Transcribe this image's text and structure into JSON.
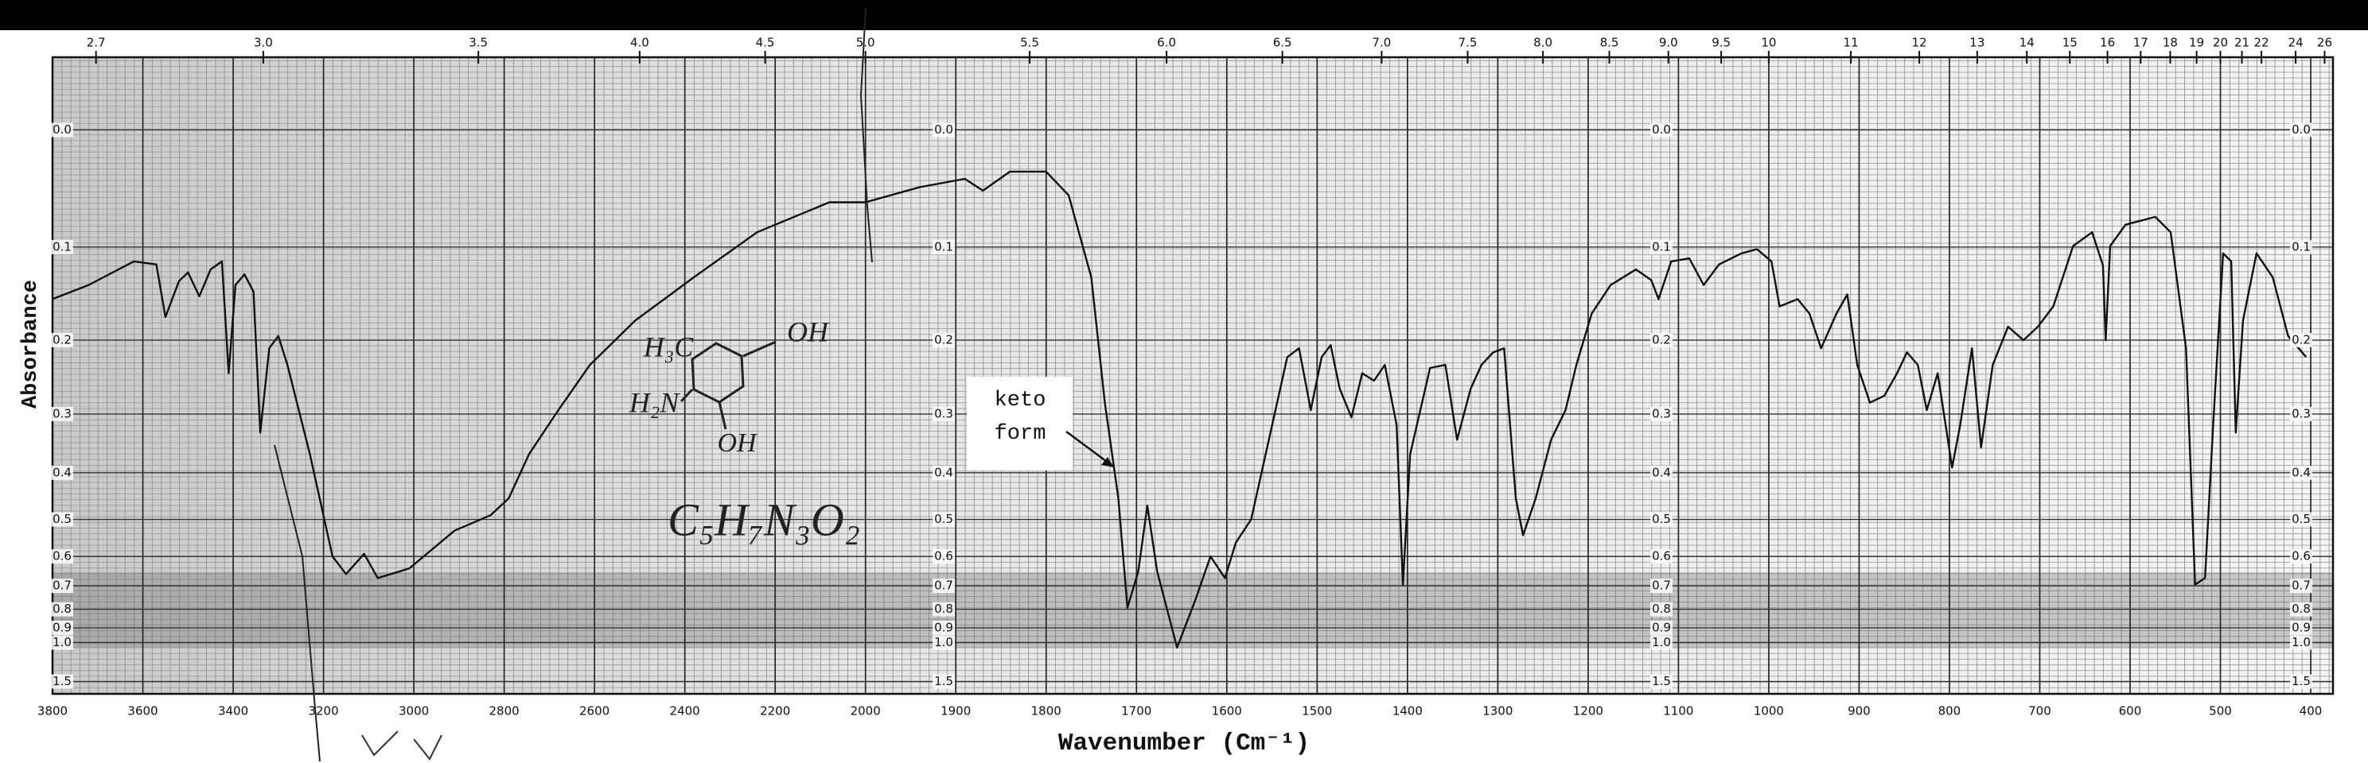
{
  "chart_data": {
    "type": "line",
    "ylabel": "Absorbance",
    "xlabel": "Wavenumber (Cm⁻¹)",
    "x": [
      3800,
      3720,
      3620,
      3570,
      3550,
      3520,
      3500,
      3475,
      3450,
      3425,
      3410,
      3395,
      3375,
      3355,
      3340,
      3320,
      3300,
      3280,
      3230,
      3180,
      3150,
      3110,
      3080,
      3010,
      2910,
      2830,
      2790,
      2745,
      2680,
      2610,
      2510,
      2380,
      2240,
      2080,
      2000,
      1940,
      1890,
      1870,
      1840,
      1800,
      1775,
      1750,
      1735,
      1720,
      1710,
      1698,
      1688,
      1677,
      1655,
      1635,
      1618,
      1602,
      1590,
      1573,
      1557,
      1533,
      1520,
      1507,
      1495,
      1485,
      1475,
      1462,
      1450,
      1437,
      1425,
      1412,
      1405,
      1397,
      1375,
      1358,
      1345,
      1330,
      1318,
      1305,
      1293,
      1280,
      1272,
      1258,
      1241,
      1225,
      1213,
      1196,
      1175,
      1147,
      1130,
      1122,
      1108,
      1088,
      1072,
      1055,
      1030,
      1013,
      997,
      988,
      968,
      955,
      942,
      925,
      913,
      902,
      888,
      872,
      858,
      847,
      835,
      825,
      813,
      797,
      788,
      775,
      765,
      752,
      735,
      718,
      702,
      685,
      663,
      642,
      630,
      627,
      622,
      605,
      572,
      555,
      538,
      528,
      517,
      508,
      497,
      488,
      483,
      475,
      460,
      442,
      425,
      405
    ],
    "series": [
      {
        "color": "#111111",
        "values": [
          0.153,
          0.138,
          0.114,
          0.117,
          0.173,
          0.134,
          0.125,
          0.15,
          0.122,
          0.114,
          0.242,
          0.138,
          0.127,
          0.145,
          0.329,
          0.21,
          0.195,
          0.231,
          0.366,
          0.6,
          0.657,
          0.592,
          0.671,
          0.638,
          0.528,
          0.49,
          0.452,
          0.366,
          0.294,
          0.231,
          0.177,
          0.13,
          0.086,
          0.059,
          0.059,
          0.046,
          0.039,
          0.049,
          0.033,
          0.033,
          0.053,
          0.13,
          0.283,
          0.452,
          0.793,
          0.648,
          0.468,
          0.648,
          1.04,
          0.76,
          0.6,
          0.671,
          0.56,
          0.5,
          0.366,
          0.221,
          0.21,
          0.294,
          0.221,
          0.206,
          0.263,
          0.305,
          0.242,
          0.252,
          0.231,
          0.317,
          0.695,
          0.366,
          0.235,
          0.231,
          0.341,
          0.263,
          0.231,
          0.215,
          0.21,
          0.452,
          0.54,
          0.452,
          0.341,
          0.294,
          0.231,
          0.169,
          0.138,
          0.122,
          0.133,
          0.153,
          0.114,
          0.111,
          0.138,
          0.117,
          0.106,
          0.102,
          0.114,
          0.161,
          0.153,
          0.169,
          0.21,
          0.169,
          0.148,
          0.231,
          0.283,
          0.273,
          0.242,
          0.215,
          0.231,
          0.294,
          0.242,
          0.39,
          0.317,
          0.21,
          0.354,
          0.231,
          0.184,
          0.2,
          0.184,
          0.161,
          0.099,
          0.086,
          0.118,
          0.2,
          0.099,
          0.079,
          0.072,
          0.086,
          0.21,
          0.695,
          0.671,
          0.317,
          0.106,
          0.114,
          0.329,
          0.177,
          0.106,
          0.13,
          0.195,
          0.221
        ]
      }
    ],
    "xlim": [
      3800,
      400
    ],
    "xticks": [
      3800,
      3600,
      3400,
      3200,
      3000,
      2800,
      2600,
      2400,
      2200,
      2000,
      1900,
      1800,
      1700,
      1600,
      1500,
      1400,
      1300,
      1200,
      1100,
      1000,
      900,
      800,
      700,
      600,
      500,
      400
    ],
    "x2scale": "reciprocal",
    "x2ticks": [
      2.7,
      {
        "value": 3,
        "label": "3.0"
      },
      3.5,
      {
        "value": 4,
        "label": "4.0"
      },
      4.5,
      {
        "value": 5,
        "label": "5.0"
      },
      5.5,
      {
        "value": 6,
        "label": "6.0"
      },
      6.5,
      {
        "value": 7,
        "label": "7.0"
      },
      7.5,
      {
        "value": 8,
        "label": "8.0"
      },
      8.5,
      {
        "value": 9,
        "label": "9.0"
      },
      9.5,
      10,
      11,
      12,
      13,
      14,
      15,
      16,
      17,
      18,
      19,
      20,
      21,
      22,
      24,
      26
    ],
    "ylim": [
      -0.05,
      2
    ],
    "yscale": "transmittance",
    "yticks": [
      {
        "value": 0,
        "label": "0.0"
      },
      0.1,
      0.2,
      0.3,
      0.4,
      0.5,
      0.6,
      0.7,
      0.8,
      0.9,
      {
        "value": 1,
        "label": "1.0"
      },
      1.5
    ],
    "grid": true,
    "annotations": {
      "box": [
        "keto",
        "form"
      ],
      "handwritten": [
        "H₃C",
        "OH",
        "H₂N",
        "OH",
        "C₅H₇N₃O₂"
      ]
    }
  }
}
